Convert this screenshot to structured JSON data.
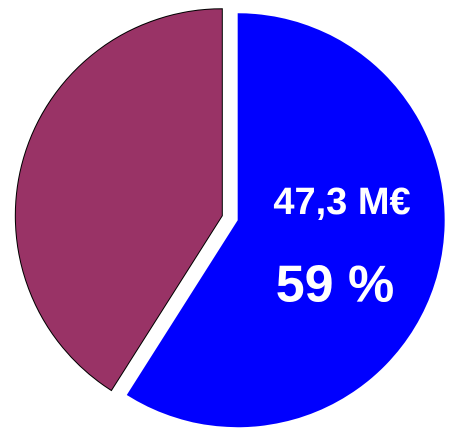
{
  "chart_data": {
    "type": "pie",
    "series": [
      {
        "values": [
          59,
          41
        ],
        "colors": [
          "#0000ff",
          "#993366"
        ],
        "value_labels": [
          "59 %",
          null
        ]
      }
    ],
    "annotations": [
      "47,3 M€"
    ],
    "start_angle": 0,
    "direction": "clockwise",
    "exploded": true
  }
}
